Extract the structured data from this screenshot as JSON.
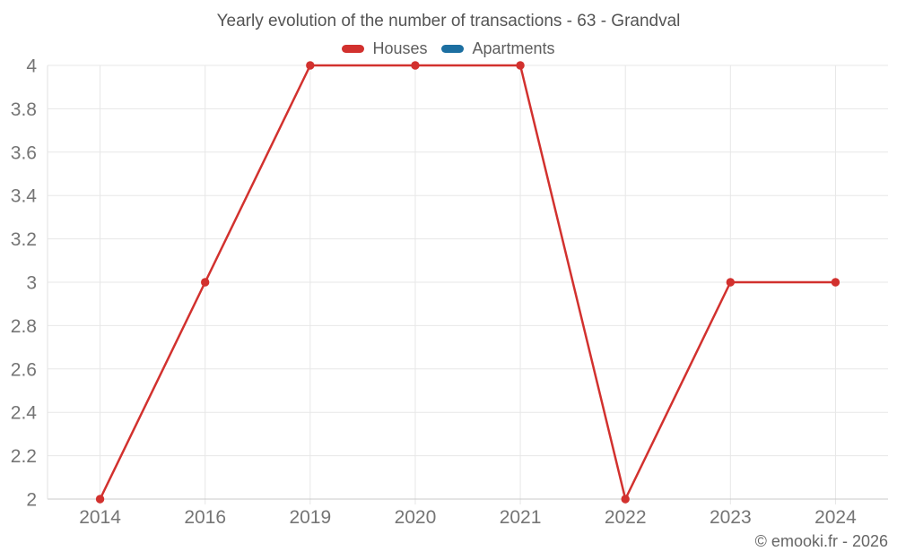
{
  "title": "Yearly evolution of the number of transactions - 63 - Grandval",
  "watermark": "© emooki.fr - 2026",
  "colors": {
    "houses_red": "#d2312e",
    "apartments_blue": "#1c6fa1",
    "grid_line": "#e7e7e7",
    "axis_line": "#c9c9c9",
    "left_axis_line": "#e2e2e2",
    "axis_text": "#757575",
    "title_text": "#545454",
    "legend_text": "#5e5e5e",
    "watermark_text": "#666666"
  },
  "chart_data": {
    "type": "line",
    "title": "Yearly evolution of the number of transactions - 63 - Grandval",
    "categories": [
      "2014",
      "2016",
      "2019",
      "2020",
      "2021",
      "2022",
      "2023",
      "2024"
    ],
    "series": [
      {
        "name": "Houses",
        "color": "#d2312e",
        "values": [
          2,
          3,
          4,
          4,
          4,
          2,
          3,
          3
        ]
      },
      {
        "name": "Apartments",
        "color": "#1c6fa1",
        "values": []
      }
    ],
    "yticks": [
      "2",
      "2.2",
      "2.4",
      "2.6",
      "2.8",
      "3",
      "3.2",
      "3.4",
      "3.6",
      "3.8",
      "4"
    ],
    "ylim": [
      2,
      4
    ],
    "xlabel": "",
    "ylabel": "",
    "grid": "on",
    "legend_position": "top"
  }
}
